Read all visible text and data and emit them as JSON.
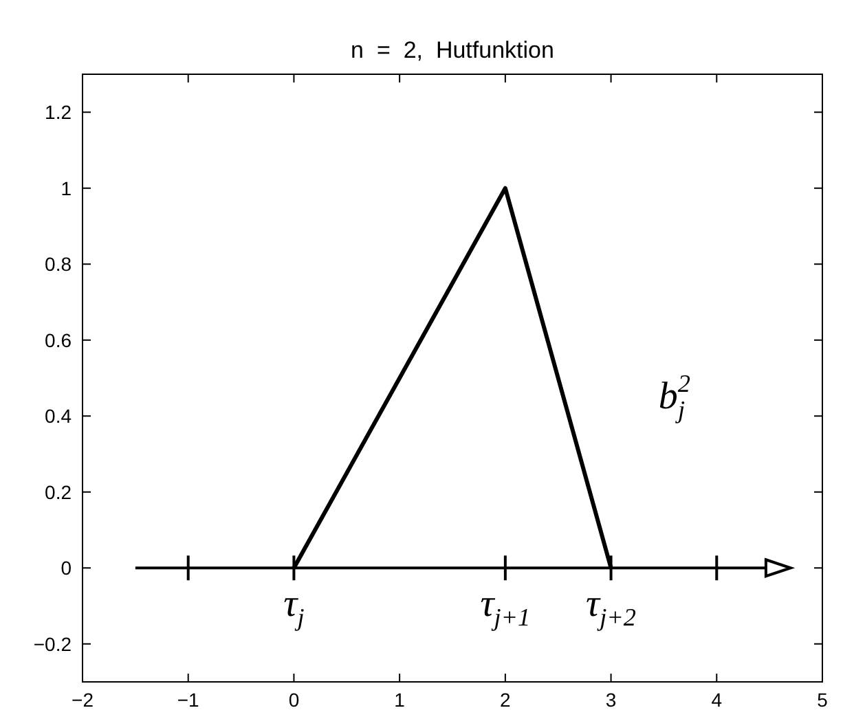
{
  "chart_data": {
    "type": "line",
    "title": "n  =  2,  Hutfunktion",
    "x": [
      0,
      2,
      3
    ],
    "series": [
      {
        "color": "#000000",
        "values": [
          0,
          1,
          0
        ]
      }
    ],
    "xlim": [
      -2,
      5
    ],
    "xticks": [
      -2,
      -1,
      0,
      1,
      2,
      3,
      4,
      5
    ],
    "ylim": [
      -0.3,
      1.3
    ],
    "yticks": [
      -0.2,
      0,
      0.2,
      0.4,
      0.6,
      0.8,
      1,
      1.2
    ],
    "marker": "none",
    "line_style": "solid",
    "ref_lines": [
      {
        "axis": "y",
        "value": 0,
        "color": "#000000"
      }
    ],
    "annotations": [
      "τ$_{j}$",
      "τ$_{j+1}$",
      "τ$_{j+2}$",
      "b$^{2}$$_{j}$"
    ]
  }
}
